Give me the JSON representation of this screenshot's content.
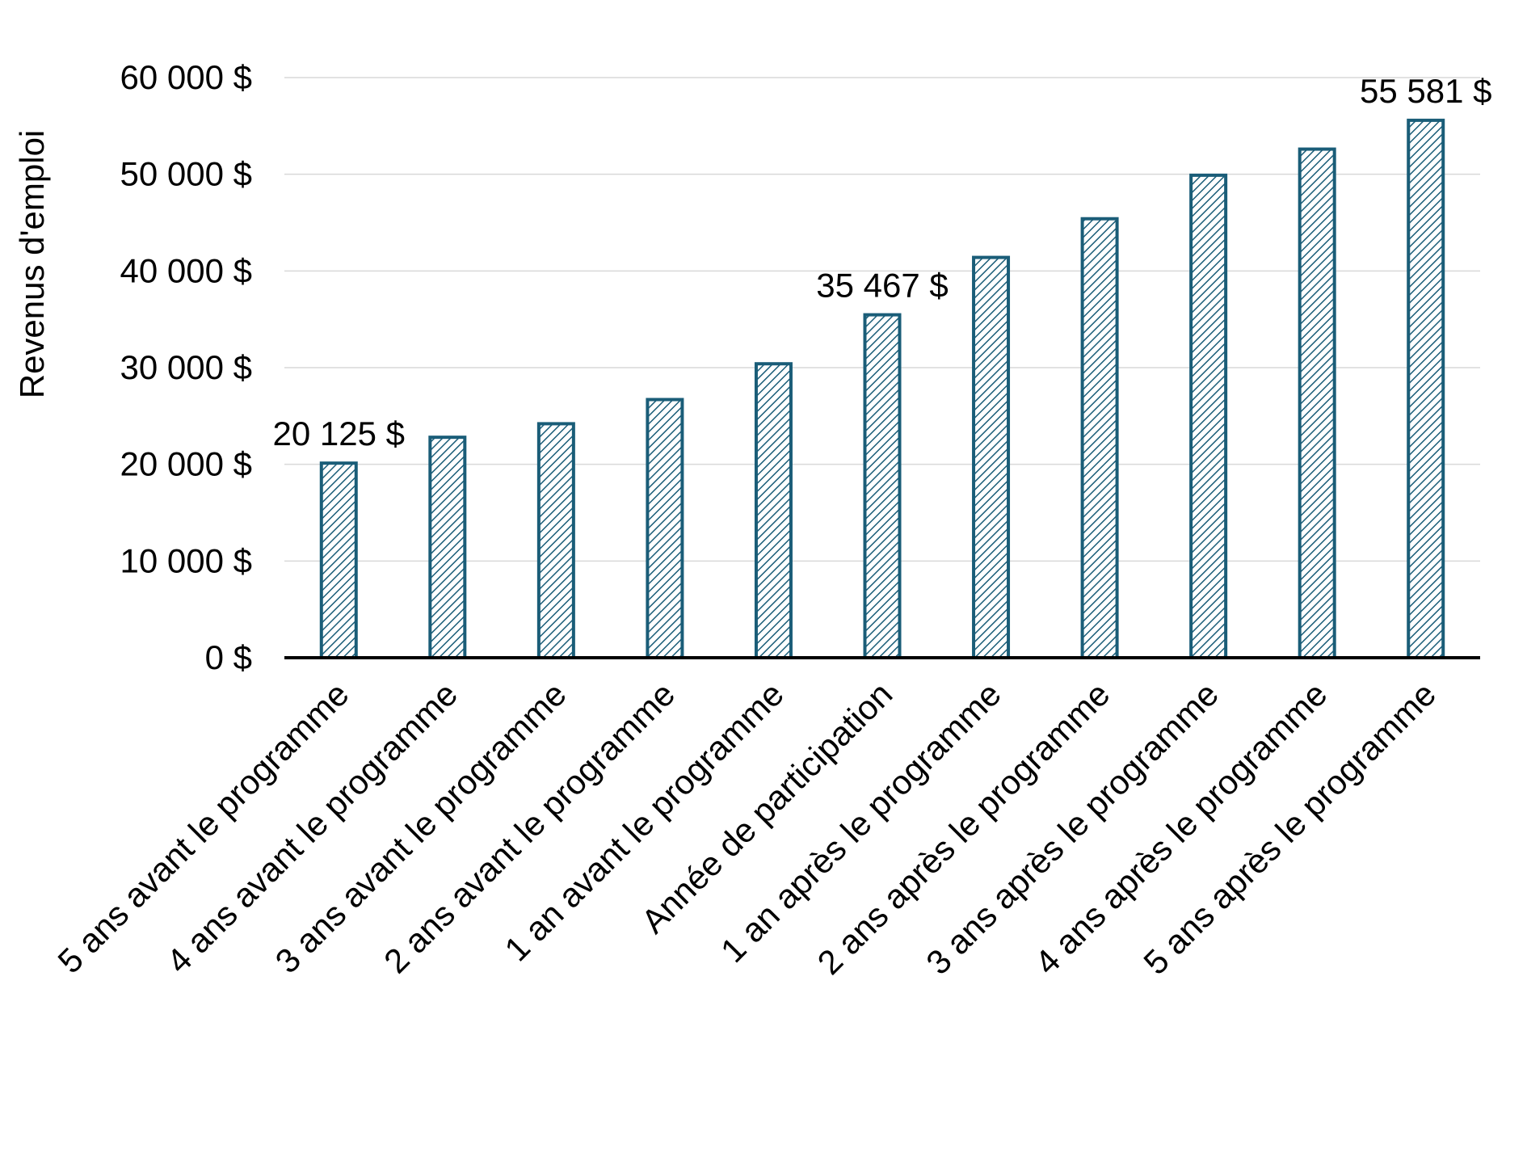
{
  "chart_data": {
    "type": "bar",
    "title": "",
    "xlabel": "",
    "ylabel": "Revenus d'emploi",
    "ylim": [
      0,
      60000
    ],
    "yticks": [
      0,
      10000,
      20000,
      30000,
      40000,
      50000,
      60000
    ],
    "ytick_labels": [
      "0 $",
      "10 000 $",
      "20 000 $",
      "30 000 $",
      "40 000 $",
      "50 000 $",
      "60 000 $"
    ],
    "grid": true,
    "legend": "none",
    "categories": [
      "5 ans avant le programme",
      "4 ans avant le programme",
      "3 ans avant le programme",
      "2 ans avant le programme",
      "1 an avant le programme",
      "Année de participation",
      "1 an après le programme",
      "2 ans après le programme",
      "3 ans après le programme",
      "4 ans après le programme",
      "5 ans après le programme"
    ],
    "values": [
      20125,
      22800,
      24200,
      26700,
      30400,
      35467,
      41400,
      45400,
      49900,
      52600,
      55581
    ],
    "data_labels": [
      {
        "index": 0,
        "text": "20 125 $"
      },
      {
        "index": 5,
        "text": "35 467 $"
      },
      {
        "index": 10,
        "text": "55 581 $"
      }
    ],
    "colors": {
      "bar_stroke": "#1a5d78",
      "bar_hatch": "#1a5d78",
      "bar_fill": "#ffffff",
      "grid": "#d9d9d9",
      "axis": "#000000"
    }
  }
}
